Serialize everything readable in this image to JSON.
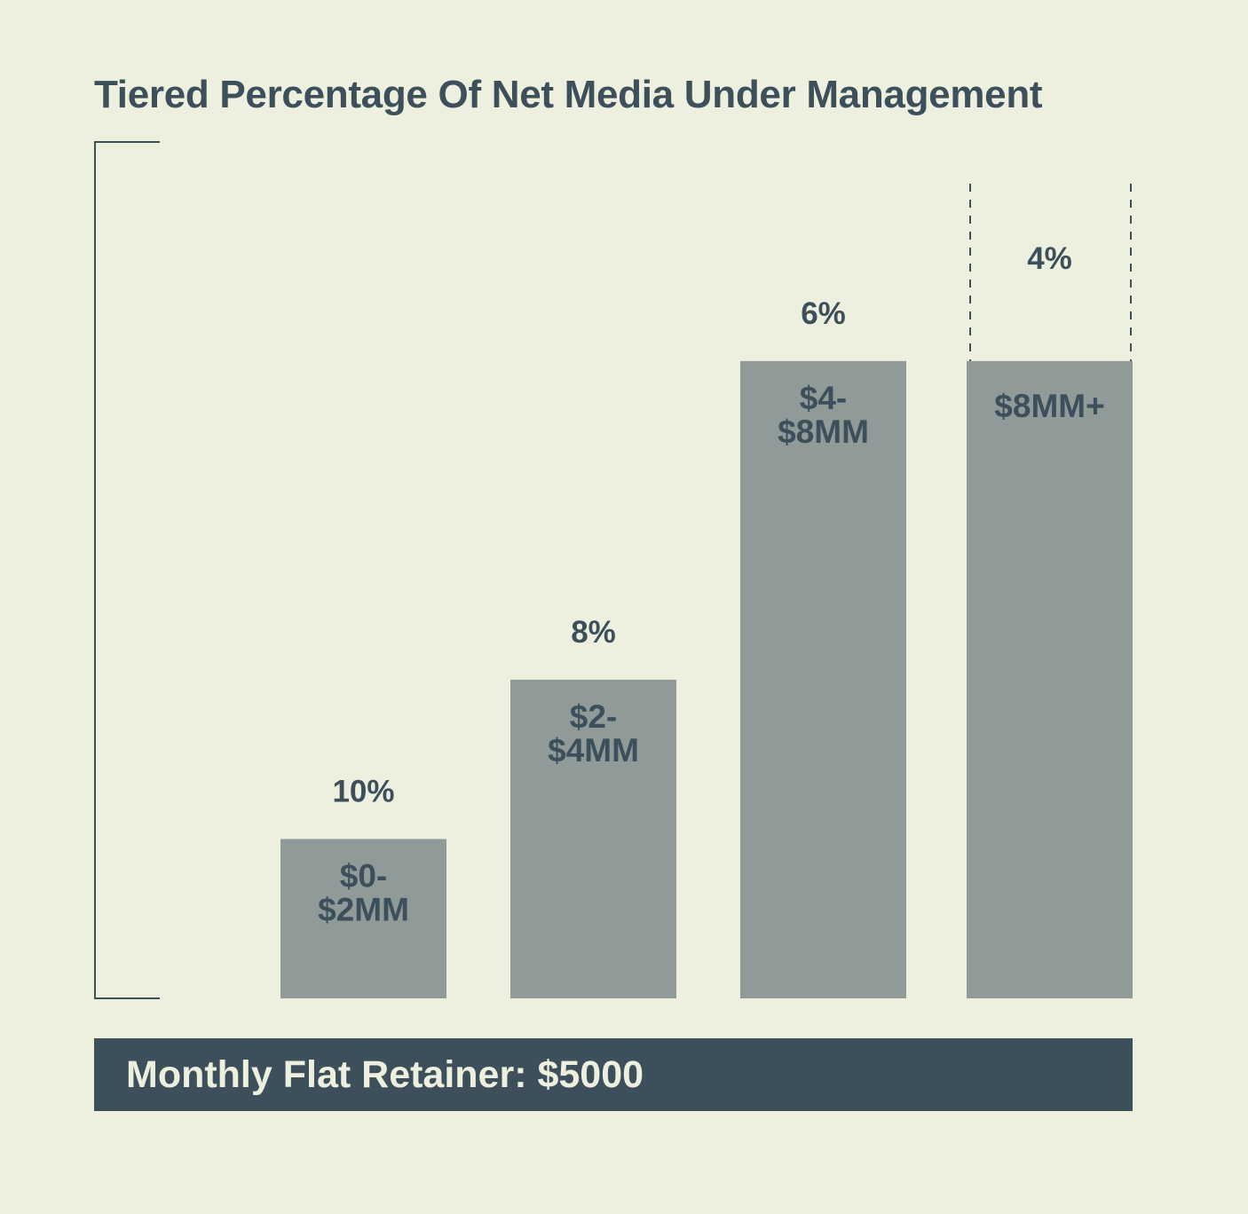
{
  "colors": {
    "background": "#edefdf",
    "bar": "#8f9a99",
    "text": "#3c4f5b",
    "footer_text": "#edefdf"
  },
  "chart_data": {
    "type": "bar",
    "title": "Tiered Percentage Of Net Media Under Management",
    "xlabel": "",
    "ylabel": "",
    "grid": false,
    "legend": "none",
    "ylim": [
      0,
      10.75
    ],
    "categories": [
      "$0-\n$2MM",
      "$2-\n$4MM",
      "$4-\n$8MM",
      "$8MM+"
    ],
    "values": [
      2,
      4,
      8,
      8
    ],
    "data_labels": [
      "10%",
      "8%",
      "6%",
      "4%"
    ],
    "open_ended_last_bar": true
  },
  "footer": {
    "label": "Monthly Flat Retainer: $5000"
  }
}
